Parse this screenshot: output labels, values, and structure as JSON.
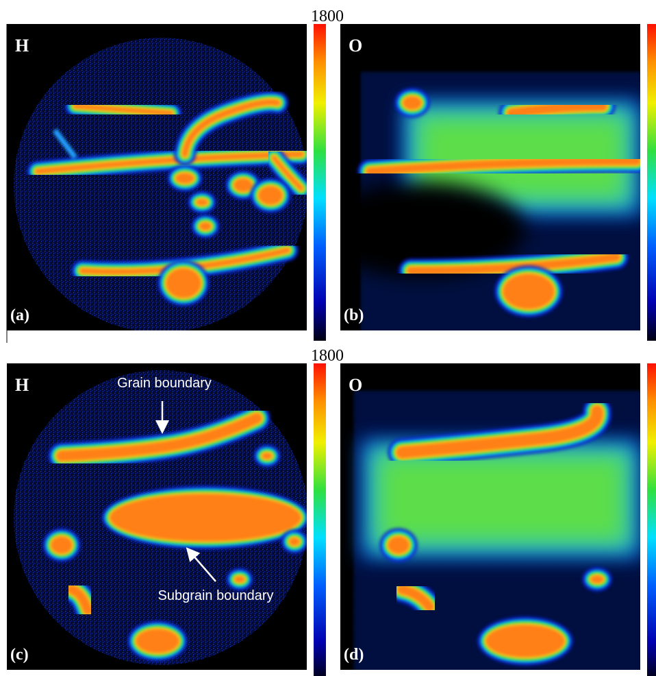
{
  "figure": {
    "rows": [
      {
        "scale_max": 1800,
        "panels": [
          {
            "element": "H",
            "label": "(a)"
          },
          {
            "element": "O",
            "label": "(b)"
          }
        ]
      },
      {
        "scale_max": 1800,
        "panels": [
          {
            "element": "H",
            "label": "(c)",
            "annotations": [
              "Grain boundary",
              "Subgrain boundary"
            ]
          },
          {
            "element": "O",
            "label": "(d)"
          }
        ]
      }
    ]
  }
}
